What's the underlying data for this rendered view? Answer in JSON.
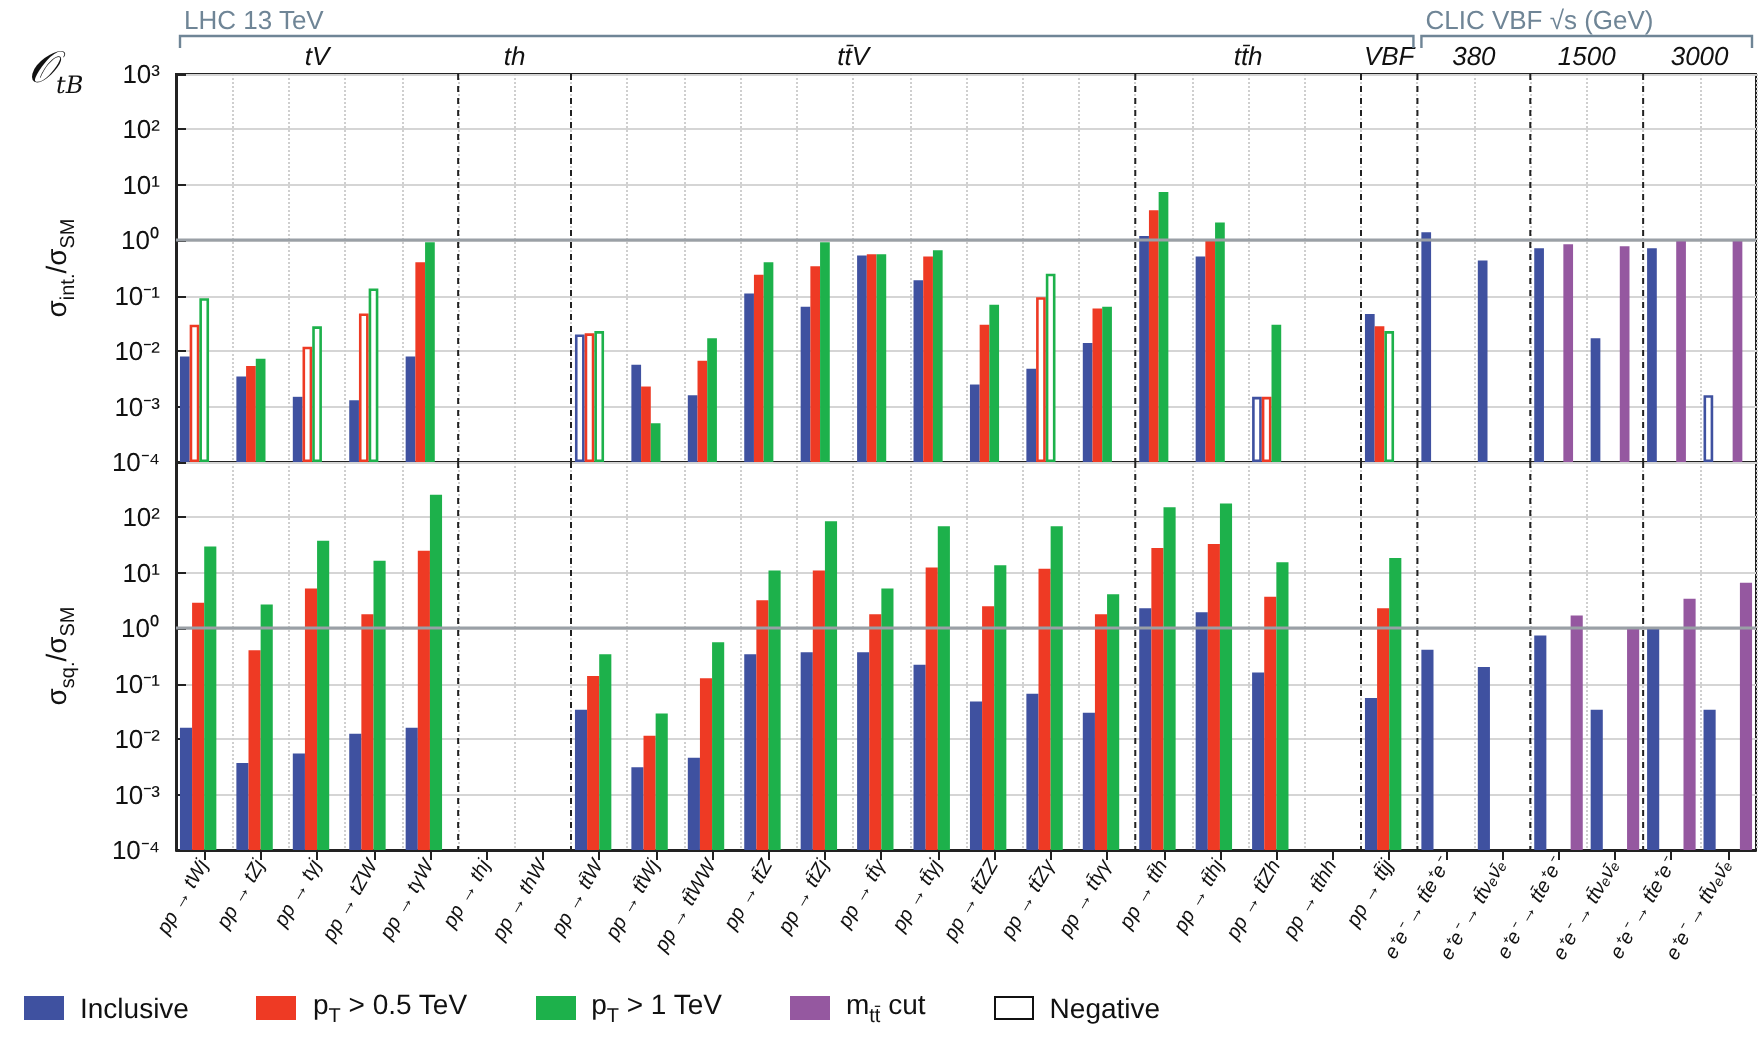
{
  "chart_data": [
    {
      "type": "bar",
      "title": "𝒪$_{tB}$",
      "ylabel": "σ$_{int.}$/σ$_{SM}$",
      "log": true,
      "grid": true,
      "legend": "bottom",
      "tick_labels": "y",
      "categories": [
        "pp → tWj",
        "pp → tZj",
        "pp → tγj",
        "pp → tZW",
        "pp → tγW",
        "pp → thj",
        "pp → thW",
        "pp → tt̄W",
        "pp → tt̄Wj",
        "pp → tt̄WW",
        "pp → tt̄Z",
        "pp → tt̄Zj",
        "pp → tt̄γ",
        "pp → tt̄γj",
        "pp → tt̄ZZ",
        "pp → tt̄Zγ",
        "pp → tt̄γγ",
        "pp → tt̄h",
        "pp → tt̄hj",
        "pp → tt̄Zh",
        "pp → tt̄hh",
        "pp → tt̄jj",
        "e⁺e⁻ → tt̄e⁺e⁻",
        "e⁺e⁻ → tt̄νₑν̄ₑ",
        "e⁺e⁻ → tt̄e⁺e⁻",
        "e⁺e⁻ → tt̄νₑν̄ₑ",
        "e⁺e⁻ → tt̄e⁺e⁻",
        "e⁺e⁻ → tt̄νₑν̄ₑ"
      ],
      "ylim": [
        0.0001,
        1000
      ],
      "yticks": [
        {
          "value": 0.0001,
          "label": "10⁻⁴"
        },
        {
          "value": 0.001,
          "label": "10⁻³"
        },
        {
          "value": 0.01,
          "label": "10⁻²"
        },
        {
          "value": 0.1,
          "label": "10⁻¹"
        },
        {
          "value": 1,
          "label": "10⁰"
        },
        {
          "value": 10,
          "label": "10¹"
        },
        {
          "value": 100,
          "label": "10²"
        },
        {
          "value": 1000,
          "label": "10³"
        }
      ],
      "ref_lines": [
        {
          "axis": "y",
          "value": 1,
          "color": "#9aa0a6"
        }
      ],
      "annotations": [
        "tV",
        "th",
        "tt̄V",
        "tt̄h",
        "VBF",
        "380",
        "1500",
        "3000",
        "LHC 13 TeV",
        "CLIC VBF √s (GeV)"
      ],
      "series": [
        {
          "name": "Inclusive",
          "color": "#3f51a0",
          "values": [
            0.008,
            0.0035,
            0.0015,
            0.0013,
            0.008,
            null,
            null,
            0.02,
            0.0057,
            0.0016,
            0.11,
            0.063,
            0.53,
            0.19,
            0.0025,
            0.0048,
            0.014,
            1.2,
            0.51,
            0.0015,
            null,
            0.047,
            1.4,
            0.43,
            0.72,
            0.017,
            0.72,
            0.0016
          ],
          "colors": [
            "#3f51a0",
            "#3f51a0",
            "#3f51a0",
            "#3f51a0",
            "#3f51a0",
            null,
            null,
            "#ffffff",
            "#3f51a0",
            "#3f51a0",
            "#3f51a0",
            "#3f51a0",
            "#3f51a0",
            "#3f51a0",
            "#3f51a0",
            "#3f51a0",
            "#3f51a0",
            "#3f51a0",
            "#3f51a0",
            "#ffffff",
            null,
            "#3f51a0",
            "#3f51a0",
            "#3f51a0",
            "#3f51a0",
            "#3f51a0",
            "#3f51a0",
            "#ffffff"
          ]
        },
        {
          "name": "p$_{T}$ > 0.5 TeV",
          "color": "#ee3a24",
          "values": [
            0.03,
            0.0054,
            0.012,
            0.048,
            0.4,
            null,
            null,
            0.021,
            0.0023,
            0.0067,
            0.24,
            0.34,
            0.56,
            0.51,
            0.03,
            0.094,
            0.059,
            3.5,
            1.0,
            0.0015,
            null,
            0.028,
            null,
            null,
            null,
            null,
            null,
            null
          ],
          "colors": [
            "#ffffff",
            "#ee3a24",
            "#ffffff",
            "#ffffff",
            "#ee3a24",
            null,
            null,
            "#ffffff",
            "#ee3a24",
            "#ee3a24",
            "#ee3a24",
            "#ee3a24",
            "#ee3a24",
            "#ee3a24",
            "#ee3a24",
            "#ffffff",
            "#ee3a24",
            "#ee3a24",
            "#ee3a24",
            "#ffffff",
            null,
            "#ee3a24",
            null,
            null,
            null,
            null,
            null,
            null
          ]
        },
        {
          "name": "p$_{T}$ > 1 TeV",
          "color": "#1db14b",
          "values": [
            0.09,
            0.0073,
            0.028,
            0.135,
            0.92,
            null,
            null,
            0.023,
            0.0005,
            0.017,
            0.4,
            0.92,
            0.56,
            0.66,
            0.069,
            0.25,
            0.063,
            7.4,
            2.1,
            0.03,
            null,
            0.023,
            null,
            null,
            null,
            null,
            null,
            null
          ],
          "colors": [
            "#ffffff",
            "#1db14b",
            "#ffffff",
            "#ffffff",
            "#1db14b",
            null,
            null,
            "#ffffff",
            "#1db14b",
            "#1db14b",
            "#1db14b",
            "#1db14b",
            "#1db14b",
            "#1db14b",
            "#1db14b",
            "#ffffff",
            "#1db14b",
            "#1db14b",
            "#1db14b",
            "#1db14b",
            null,
            "#ffffff",
            null,
            null,
            null,
            null,
            null,
            null
          ]
        },
        {
          "name": "m$_{tt̄}$ cut",
          "color": "#9558a0",
          "values": [
            null,
            null,
            null,
            null,
            null,
            null,
            null,
            null,
            null,
            null,
            null,
            null,
            null,
            null,
            null,
            null,
            null,
            null,
            null,
            null,
            null,
            null,
            null,
            null,
            0.85,
            0.78,
            1.0,
            1.0
          ]
        },
        {
          "name": "Negative",
          "color": "#ffffff",
          "values": [
            null,
            null,
            null,
            null,
            null,
            null,
            null,
            null,
            null,
            null,
            null,
            null,
            null,
            null,
            null,
            null,
            null,
            null,
            null,
            null,
            null,
            null,
            null,
            null,
            null,
            null,
            null,
            null
          ]
        }
      ]
    },
    {
      "type": "bar",
      "ylabel": "σ$_{sq.}$/σ$_{SM}$",
      "log": true,
      "grid": true,
      "legend": "bottom",
      "categories": [
        "pp → tWj",
        "pp → tZj",
        "pp → tγj",
        "pp → tZW",
        "pp → tγW",
        "pp → thj",
        "pp → thW",
        "pp → tt̄W",
        "pp → tt̄Wj",
        "pp → tt̄WW",
        "pp → tt̄Z",
        "pp → tt̄Zj",
        "pp → tt̄γ",
        "pp → tt̄γj",
        "pp → tt̄ZZ",
        "pp → tt̄Zγ",
        "pp → tt̄γγ",
        "pp → tt̄h",
        "pp → tt̄hj",
        "pp → tt̄Zh",
        "pp → tt̄hh",
        "pp → tt̄jj",
        "e⁺e⁻ → tt̄e⁺e⁻",
        "e⁺e⁻ → tt̄νₑν̄ₑ",
        "e⁺e⁻ → tt̄e⁺e⁻",
        "e⁺e⁻ → tt̄νₑν̄ₑ",
        "e⁺e⁻ → tt̄e⁺e⁻",
        "e⁺e⁻ → tt̄νₑν̄ₑ"
      ],
      "ylim": [
        0.0001,
        1000
      ],
      "yticks": [
        {
          "value": 0.0001,
          "label": "10⁻⁴"
        },
        {
          "value": 0.001,
          "label": "10⁻³"
        },
        {
          "value": 0.01,
          "label": "10⁻²"
        },
        {
          "value": 0.1,
          "label": "10⁻¹"
        },
        {
          "value": 1,
          "label": "10⁰"
        },
        {
          "value": 10,
          "label": "10¹"
        },
        {
          "value": 100,
          "label": "10²"
        },
        {
          "value": 1000,
          "label": null
        }
      ],
      "ref_lines": [
        {
          "axis": "y",
          "value": 1,
          "color": "#9aa0a6"
        }
      ],
      "series": [
        {
          "name": "Inclusive",
          "color": "#3f51a0",
          "values": [
            0.016,
            0.0037,
            0.0055,
            0.0125,
            0.016,
            null,
            null,
            0.034,
            0.0031,
            0.0046,
            0.34,
            0.37,
            0.37,
            0.22,
            0.048,
            0.066,
            0.03,
            2.3,
            1.95,
            0.16,
            null,
            0.055,
            0.41,
            0.2,
            0.74,
            0.034,
            1.0,
            0.034
          ]
        },
        {
          "name": "p$_{T}$ > 0.5 TeV",
          "color": "#ee3a24",
          "values": [
            2.9,
            0.4,
            5.2,
            1.8,
            25,
            null,
            null,
            0.138,
            0.0115,
            0.126,
            3.2,
            11,
            1.8,
            12.5,
            2.5,
            11.8,
            1.8,
            28,
            33,
            3.7,
            null,
            2.3,
            null,
            null,
            null,
            null,
            null,
            null
          ]
        },
        {
          "name": "p$_{T}$ > 1 TeV",
          "color": "#1db14b",
          "values": [
            30,
            2.7,
            38,
            16.6,
            256,
            null,
            null,
            0.34,
            0.029,
            0.56,
            11,
            85,
            5.2,
            69,
            13.7,
            69,
            4.1,
            152,
            178,
            15.5,
            null,
            18.6,
            null,
            null,
            null,
            null,
            null,
            null
          ]
        },
        {
          "name": "m$_{tt̄}$ cut",
          "color": "#9558a0",
          "values": [
            null,
            null,
            null,
            null,
            null,
            null,
            null,
            null,
            null,
            null,
            null,
            null,
            null,
            null,
            null,
            null,
            null,
            null,
            null,
            null,
            null,
            null,
            null,
            null,
            1.7,
            1.0,
            3.4,
            6.6
          ]
        }
      ]
    }
  ]
}
